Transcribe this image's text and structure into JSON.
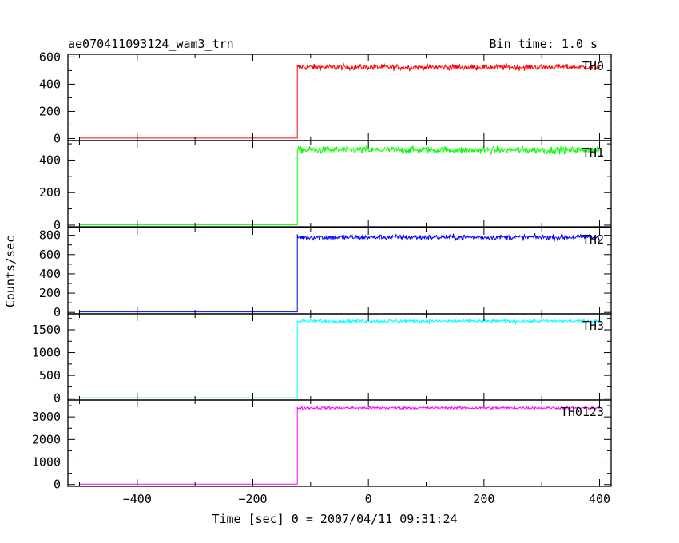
{
  "header": {
    "title": "ae070411093124_wam3_trn",
    "bin_time": "Bin time: 1.0 s"
  },
  "chart_data": {
    "type": "line",
    "xlabel": "Time [sec] 0 = 2007/04/11 09:31:24",
    "ylabel": "Counts/sec",
    "xlim": [
      -520,
      420
    ],
    "x_ticks": [
      -400,
      -200,
      0,
      200,
      400
    ],
    "x_tick_labels": [
      "−400",
      "−200",
      "0",
      "200",
      "400"
    ],
    "step_time": -123,
    "x_start": -500,
    "x_end": 400,
    "panels": [
      {
        "name": "TH0",
        "color": "#ff0000",
        "ylim": [
          -15,
          620
        ],
        "yticks": [
          0,
          200,
          400,
          600
        ],
        "ytick_labels": [
          "0",
          "200",
          "400",
          "600"
        ],
        "pre_level": 3,
        "post_level": 525,
        "noise": 22
      },
      {
        "name": "TH1",
        "color": "#00ff00",
        "ylim": [
          -10,
          520
        ],
        "yticks": [
          0,
          200,
          400
        ],
        "ytick_labels": [
          "0",
          "200",
          "400"
        ],
        "pre_level": 2,
        "post_level": 462,
        "noise": 22
      },
      {
        "name": "TH2",
        "color": "#0000ff",
        "ylim": [
          -15,
          880
        ],
        "yticks": [
          0,
          200,
          400,
          600,
          800
        ],
        "ytick_labels": [
          "0",
          "200",
          "400",
          "600",
          "800"
        ],
        "pre_level": 5,
        "post_level": 780,
        "noise": 28
      },
      {
        "name": "TH3",
        "color": "#00ffff",
        "ylim": [
          -40,
          1850
        ],
        "yticks": [
          0,
          500,
          1000,
          1500
        ],
        "ytick_labels": [
          "0",
          "500",
          "1000",
          "1500"
        ],
        "pre_level": 10,
        "post_level": 1690,
        "noise": 42
      },
      {
        "name": "TH0123",
        "color": "#ff00ff",
        "ylim": [
          -80,
          3750
        ],
        "yticks": [
          0,
          1000,
          2000,
          3000
        ],
        "ytick_labels": [
          "0",
          "1000",
          "2000",
          "3000"
        ],
        "pre_level": 15,
        "post_level": 3400,
        "noise": 60
      }
    ]
  }
}
